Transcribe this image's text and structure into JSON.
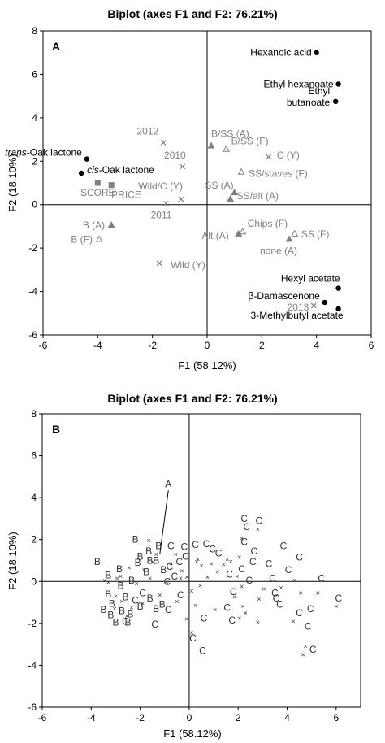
{
  "chart_data": [
    {
      "panel": "A",
      "type": "scatter",
      "title": "Biplot (axes F1 and F2: 76.21%)",
      "xlabel": "F1 (58.12%)",
      "ylabel": "F2 (18.10%)",
      "xlim": [
        -6,
        6
      ],
      "ylim": [
        -6,
        8
      ],
      "xticks": [
        "-6",
        "-4",
        "-2",
        "0",
        "2",
        "4",
        "6"
      ],
      "yticks": [
        "-6",
        "-4",
        "-2",
        "0",
        "2",
        "4",
        "6",
        "8"
      ],
      "grid": false,
      "points": [
        {
          "label": "Hexanoic acid",
          "x": 4.0,
          "y": 7.0,
          "marker": "dot",
          "color": "#000000"
        },
        {
          "label": "Ethyl hexanoate",
          "x": 4.8,
          "y": 5.55,
          "marker": "dot",
          "color": "#000000"
        },
        {
          "label": "Ethyl butanoate",
          "x": 4.7,
          "y": 4.75,
          "marker": "dot",
          "color": "#000000"
        },
        {
          "label": "trans-Oak lactone",
          "x": -4.4,
          "y": 2.1,
          "marker": "dot",
          "color": "#000000"
        },
        {
          "label": "cis-Oak lactone",
          "x": -4.6,
          "y": 1.45,
          "marker": "dot",
          "color": "#000000"
        },
        {
          "label": "Hexyl acetate",
          "x": 4.8,
          "y": -3.85,
          "marker": "dot",
          "color": "#000000"
        },
        {
          "label": "β-Damascenone",
          "x": 4.3,
          "y": -4.5,
          "marker": "dot",
          "color": "#000000"
        },
        {
          "label": "3-Methylbutyl acetate",
          "x": 4.8,
          "y": -4.8,
          "marker": "dot",
          "color": "#000000"
        },
        {
          "label": "SCORE",
          "x": -4.0,
          "y": 1.0,
          "marker": "square",
          "color": "#808080"
        },
        {
          "label": "PRICE",
          "x": -3.5,
          "y": 0.9,
          "marker": "square",
          "color": "#808080"
        },
        {
          "label": "2012",
          "x": -1.6,
          "y": 2.85,
          "marker": "x",
          "color": "#808080"
        },
        {
          "label": "2010",
          "x": -0.9,
          "y": 1.75,
          "marker": "x",
          "color": "#808080"
        },
        {
          "label": "Wild/C (Y)",
          "x": -0.95,
          "y": 0.25,
          "marker": "x",
          "color": "#808080"
        },
        {
          "label": "2011",
          "x": -1.5,
          "y": 0.05,
          "marker": "x",
          "color": "#808080"
        },
        {
          "label": "Wild (Y)",
          "x": -1.75,
          "y": -2.7,
          "marker": "x",
          "color": "#808080"
        },
        {
          "label": "C (Y)",
          "x": 2.25,
          "y": 2.2,
          "marker": "x",
          "color": "#808080"
        },
        {
          "label": "2013",
          "x": 3.9,
          "y": -4.65,
          "marker": "x",
          "color": "#808080"
        },
        {
          "label": "B/SS (A)",
          "x": 0.15,
          "y": 2.7,
          "marker": "tri-filled",
          "color": "#808080"
        },
        {
          "label": "B/SS (F)",
          "x": 0.7,
          "y": 2.55,
          "marker": "tri-open",
          "color": "#808080"
        },
        {
          "label": "SS/staves (F)",
          "x": 1.25,
          "y": 1.5,
          "marker": "tri-open",
          "color": "#808080"
        },
        {
          "label": "SS (A)",
          "x": 1.0,
          "y": 0.55,
          "marker": "tri-filled",
          "color": "#808080"
        },
        {
          "label": "SS/alt (A)",
          "x": 0.85,
          "y": 0.25,
          "marker": "tri-filled",
          "color": "#808080"
        },
        {
          "label": "B (A)",
          "x": -3.5,
          "y": -0.95,
          "marker": "tri-filled",
          "color": "#808080"
        },
        {
          "label": "B (F)",
          "x": -3.95,
          "y": -1.6,
          "marker": "tri-open",
          "color": "#808080"
        },
        {
          "label": "Chips (F)",
          "x": 1.3,
          "y": -1.25,
          "marker": "tri-open",
          "color": "#808080"
        },
        {
          "label": "Alt (A)",
          "x": 1.15,
          "y": -1.35,
          "marker": "tri-filled",
          "color": "#808080"
        },
        {
          "label": "SS (F)",
          "x": 3.2,
          "y": -1.35,
          "marker": "tri-open",
          "color": "#808080"
        },
        {
          "label": "none (A)",
          "x": 3.0,
          "y": -1.6,
          "marker": "tri-filled",
          "color": "#808080"
        }
      ]
    },
    {
      "panel": "B",
      "type": "scatter",
      "title": "Biplot (axes F1 and F2: 76.21%)",
      "xlabel": "F1 (58.12%)",
      "ylabel": "F2 (18.10%)",
      "xlim": [
        -6,
        7
      ],
      "ylim": [
        -6,
        8
      ],
      "xticks": [
        "-6",
        "-4",
        "-2",
        "0",
        "2",
        "4",
        "6"
      ],
      "yticks": [
        "-6",
        "-4",
        "-2",
        "0",
        "2",
        "4",
        "6",
        "8"
      ],
      "grid": false,
      "annotation": {
        "text": "A",
        "x": -0.85,
        "y": 4.5,
        "arrow_to": [
          -1.2,
          1.3
        ]
      },
      "letter_points": [
        {
          "t": "B",
          "x": -2.2,
          "y": 2.0
        },
        {
          "t": "B",
          "x": -1.65,
          "y": 1.45
        },
        {
          "t": "B",
          "x": -2.0,
          "y": 1.2
        },
        {
          "t": "B",
          "x": -2.1,
          "y": 0.9
        },
        {
          "t": "B",
          "x": -1.25,
          "y": 1.7
        },
        {
          "t": "B",
          "x": -1.6,
          "y": 1.0
        },
        {
          "t": "B",
          "x": -1.35,
          "y": 1.0
        },
        {
          "t": "B",
          "x": -1.05,
          "y": 0.55
        },
        {
          "t": "B",
          "x": -1.75,
          "y": 0.45
        },
        {
          "t": "B",
          "x": -2.35,
          "y": 0.05
        },
        {
          "t": "B",
          "x": -2.85,
          "y": 0.6
        },
        {
          "t": "B",
          "x": -3.3,
          "y": 0.3
        },
        {
          "t": "B",
          "x": -3.75,
          "y": 0.95
        },
        {
          "t": "B",
          "x": -2.8,
          "y": -0.2
        },
        {
          "t": "B",
          "x": -2.6,
          "y": -0.75
        },
        {
          "t": "B",
          "x": -3.3,
          "y": -0.6
        },
        {
          "t": "B",
          "x": -3.15,
          "y": -1.05
        },
        {
          "t": "B",
          "x": -2.0,
          "y": -1.2
        },
        {
          "t": "B",
          "x": -3.5,
          "y": -1.35
        },
        {
          "t": "B",
          "x": -2.75,
          "y": -1.4
        },
        {
          "t": "B",
          "x": -3.0,
          "y": -1.95
        },
        {
          "t": "B",
          "x": -2.4,
          "y": -1.55
        },
        {
          "t": "B",
          "x": -2.5,
          "y": -1.95
        },
        {
          "t": "B",
          "x": -3.2,
          "y": -1.6
        },
        {
          "t": "B",
          "x": -1.1,
          "y": -1.1
        },
        {
          "t": "B",
          "x": -1.35,
          "y": -1.3
        },
        {
          "t": "B",
          "x": -1.6,
          "y": -0.8
        },
        {
          "t": "C",
          "x": -0.75,
          "y": 1.7
        },
        {
          "t": "C",
          "x": -0.2,
          "y": 1.65
        },
        {
          "t": "C",
          "x": 0.25,
          "y": 1.75
        },
        {
          "t": "C",
          "x": 0.7,
          "y": 1.8
        },
        {
          "t": "C",
          "x": 0.95,
          "y": 1.55
        },
        {
          "t": "C",
          "x": 1.2,
          "y": 1.35
        },
        {
          "t": "C",
          "x": -0.15,
          "y": 1.2
        },
        {
          "t": "C",
          "x": -0.4,
          "y": 0.95
        },
        {
          "t": "C",
          "x": -0.8,
          "y": 0.7
        },
        {
          "t": "C",
          "x": -0.6,
          "y": 0.25
        },
        {
          "t": "C",
          "x": -0.9,
          "y": 0.0
        },
        {
          "t": "C",
          "x": -0.35,
          "y": -0.65
        },
        {
          "t": "C",
          "x": -0.85,
          "y": -1.35
        },
        {
          "t": "C",
          "x": -1.9,
          "y": -0.55
        },
        {
          "t": "C",
          "x": -2.2,
          "y": -0.9
        },
        {
          "t": "C",
          "x": -1.4,
          "y": -2.05
        },
        {
          "t": "C",
          "x": -2.6,
          "y": -1.9
        },
        {
          "t": "C",
          "x": 0.15,
          "y": -2.7
        },
        {
          "t": "C",
          "x": 0.55,
          "y": -3.3
        },
        {
          "t": "C",
          "x": 0.6,
          "y": -1.75
        },
        {
          "t": "C",
          "x": 1.55,
          "y": -1.25
        },
        {
          "t": "C",
          "x": 1.8,
          "y": -0.5
        },
        {
          "t": "C",
          "x": 1.65,
          "y": 0.35
        },
        {
          "t": "C",
          "x": 2.15,
          "y": 0.6
        },
        {
          "t": "C",
          "x": 2.6,
          "y": 0.95
        },
        {
          "t": "C",
          "x": 2.25,
          "y": 1.9
        },
        {
          "t": "C",
          "x": 2.35,
          "y": 2.6
        },
        {
          "t": "C",
          "x": 2.25,
          "y": 3.0
        },
        {
          "t": "C",
          "x": 2.85,
          "y": 2.9
        },
        {
          "t": "C",
          "x": 2.65,
          "y": 1.45
        },
        {
          "t": "C",
          "x": 2.45,
          "y": 0.05
        },
        {
          "t": "C",
          "x": 1.75,
          "y": -1.85
        },
        {
          "t": "C",
          "x": 3.25,
          "y": 0.85
        },
        {
          "t": "C",
          "x": 3.4,
          "y": 0.15
        },
        {
          "t": "C",
          "x": 3.55,
          "y": -0.8
        },
        {
          "t": "C",
          "x": 3.85,
          "y": 1.7
        },
        {
          "t": "C",
          "x": 4.5,
          "y": 1.15
        },
        {
          "t": "C",
          "x": 4.05,
          "y": 0.55
        },
        {
          "t": "C",
          "x": 3.7,
          "y": -1.1
        },
        {
          "t": "C",
          "x": 3.5,
          "y": -0.55
        },
        {
          "t": "C",
          "x": 4.5,
          "y": -1.5
        },
        {
          "t": "C",
          "x": 4.95,
          "y": -1.3
        },
        {
          "t": "C",
          "x": 4.85,
          "y": -2.15
        },
        {
          "t": "C",
          "x": 5.05,
          "y": -3.25
        },
        {
          "t": "C",
          "x": 5.4,
          "y": 0.15
        },
        {
          "t": "C",
          "x": 6.1,
          "y": -0.8
        }
      ],
      "cross_points": [
        [
          -1.65,
          1.95
        ],
        [
          -1.35,
          1.3
        ],
        [
          -1.5,
          0.9
        ],
        [
          -1.85,
          0.55
        ],
        [
          -2.45,
          0.65
        ],
        [
          -2.95,
          0.15
        ],
        [
          -3.45,
          0.05
        ],
        [
          -2.15,
          -0.1
        ],
        [
          -1.6,
          0.15
        ],
        [
          -0.75,
          0.85
        ],
        [
          -0.55,
          1.3
        ],
        [
          -0.3,
          0.5
        ],
        [
          -0.1,
          0.2
        ],
        [
          0.35,
          1.05
        ],
        [
          0.5,
          0.75
        ],
        [
          0.9,
          0.85
        ],
        [
          1.15,
          0.45
        ],
        [
          0.75,
          0.2
        ],
        [
          0.45,
          -0.2
        ],
        [
          0.1,
          -0.45
        ],
        [
          -0.35,
          0.15
        ],
        [
          1.4,
          0.8
        ],
        [
          1.55,
          1.05
        ],
        [
          1.7,
          0.95
        ],
        [
          2.05,
          1.15
        ],
        [
          1.95,
          0.25
        ],
        [
          2.15,
          -0.25
        ],
        [
          1.85,
          -0.75
        ],
        [
          2.2,
          -1.2
        ],
        [
          2.05,
          -1.75
        ],
        [
          2.3,
          -1.5
        ],
        [
          2.85,
          -0.85
        ],
        [
          3.05,
          -0.35
        ],
        [
          2.8,
          -1.95
        ],
        [
          1.05,
          -1.35
        ],
        [
          0.25,
          -1.15
        ],
        [
          0.1,
          -2.45
        ],
        [
          -0.1,
          -1.8
        ],
        [
          -0.5,
          -0.95
        ],
        [
          -1.2,
          -0.65
        ],
        [
          -1.9,
          -1.05
        ],
        [
          -2.35,
          -1.25
        ],
        [
          -2.75,
          -0.95
        ],
        [
          -3.0,
          -0.7
        ],
        [
          -3.05,
          -1.3
        ],
        [
          -2.55,
          -1.65
        ],
        [
          -3.3,
          -0.05
        ],
        [
          -2.8,
          0.25
        ],
        [
          -0.9,
          -0.1
        ],
        [
          2.8,
          2.5
        ],
        [
          2.15,
          2.05
        ],
        [
          4.3,
          0.05
        ],
        [
          4.55,
          -0.55
        ],
        [
          4.75,
          -3.1
        ],
        [
          4.65,
          -3.5
        ],
        [
          5.25,
          -0.55
        ],
        [
          6.0,
          -1.2
        ],
        [
          3.75,
          -0.3
        ],
        [
          4.25,
          -1.9
        ],
        [
          0.3,
          0.95
        ]
      ]
    }
  ]
}
